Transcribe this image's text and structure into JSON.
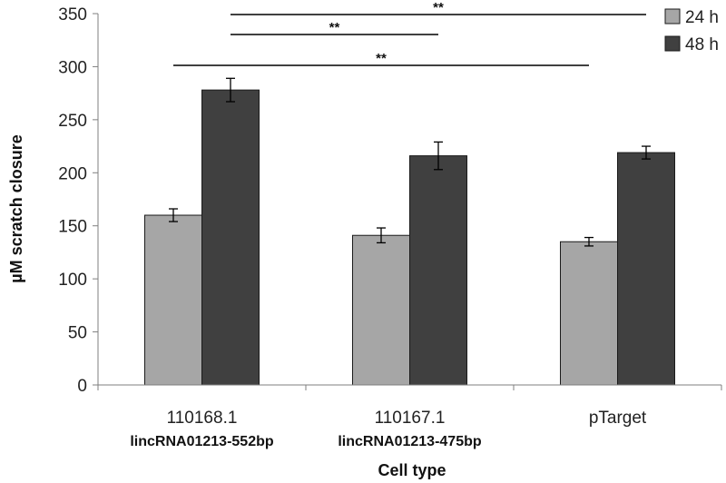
{
  "chart_data": {
    "type": "bar",
    "title": "",
    "xlabel": "Cell type",
    "ylabel": "µM scratch closure",
    "ylim": [
      0,
      350
    ],
    "yticks": [
      0,
      50,
      100,
      150,
      200,
      250,
      300,
      350
    ],
    "grid": false,
    "legend_position": "top-right",
    "categories": [
      {
        "line1": "110168.1",
        "line2": "lincRNA01213-552bp"
      },
      {
        "line1": "110167.1",
        "line2": "lincRNA01213-475bp"
      },
      {
        "line1": "pTarget",
        "line2": ""
      }
    ],
    "series": [
      {
        "name": "24 h",
        "color": "#a6a6a6",
        "values": [
          160,
          141,
          135
        ],
        "errors": [
          6,
          7,
          4
        ]
      },
      {
        "name": "48 h",
        "color": "#404040",
        "values": [
          278,
          216,
          219
        ],
        "errors": [
          11,
          13,
          6
        ]
      }
    ],
    "significance": [
      {
        "label": "**",
        "from": {
          "category": 0,
          "series": 1
        },
        "to": {
          "category": 2,
          "series": 1
        }
      },
      {
        "label": "**",
        "from": {
          "category": 0,
          "series": 1
        },
        "to": {
          "category": 1,
          "series": 1
        }
      },
      {
        "label": "**",
        "from": {
          "category": 0,
          "series": 0
        },
        "to": {
          "category": 2,
          "series": 0
        }
      }
    ]
  }
}
